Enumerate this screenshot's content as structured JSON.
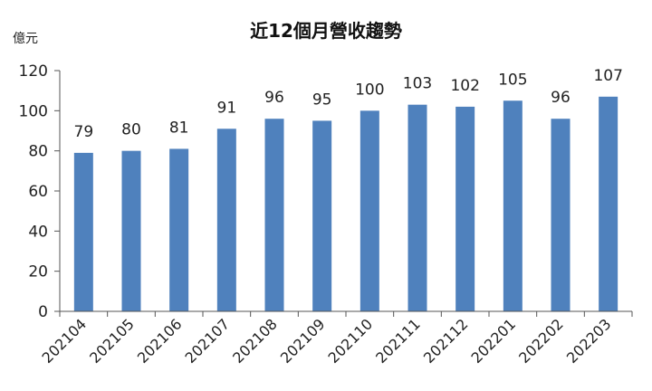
{
  "chart_data": {
    "type": "bar",
    "title": "近12個月營收趨勢",
    "y_unit": "億元",
    "categories": [
      "202104",
      "202105",
      "202106",
      "202107",
      "202108",
      "202109",
      "202110",
      "202111",
      "202112",
      "202201",
      "202202",
      "202203"
    ],
    "values": [
      79,
      80,
      81,
      91,
      96,
      95,
      100,
      103,
      102,
      105,
      96,
      107
    ],
    "ylim": [
      0,
      120
    ],
    "yticks": [
      0,
      20,
      40,
      60,
      80,
      100,
      120
    ],
    "grid": false,
    "legend": "none",
    "bar_color": "#4f81bd"
  }
}
